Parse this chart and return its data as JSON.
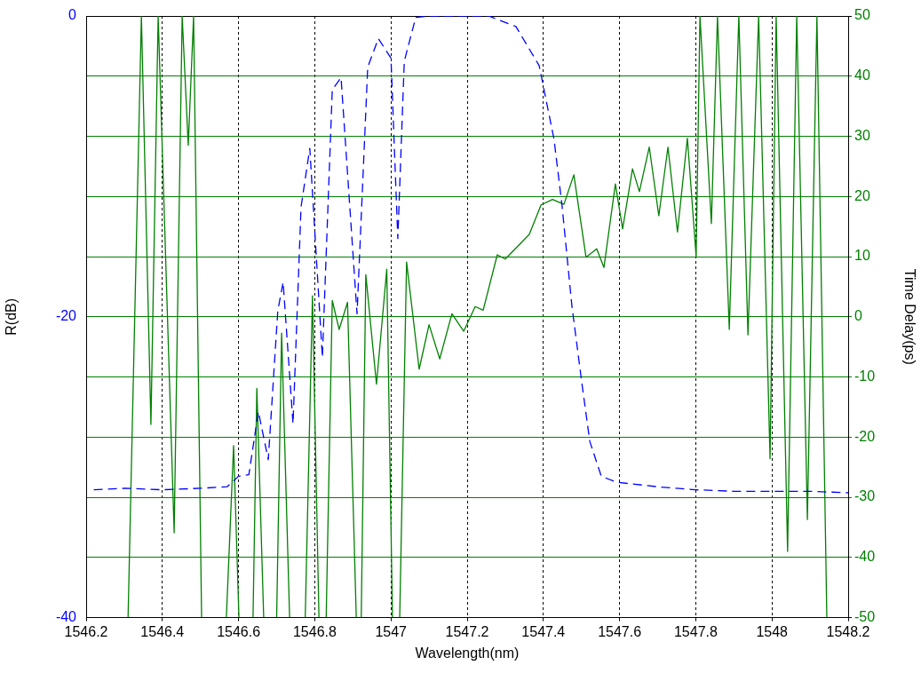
{
  "chart_data": {
    "type": "line",
    "xlabel": "Wavelength(nm)",
    "ylabel": "R(dB)",
    "y2label": "Time Delay(ps)",
    "xlim": [
      1546.2,
      1548.2
    ],
    "xticks": [
      1546.2,
      1546.4,
      1546.6,
      1546.8,
      1547,
      1547.2,
      1547.4,
      1547.6,
      1547.8,
      1548,
      1548.2
    ],
    "ylim": [
      -40,
      0
    ],
    "yticks": [
      -40,
      -20,
      0
    ],
    "y2lim": [
      -50,
      50
    ],
    "y2ticks": [
      -50,
      -40,
      -30,
      -20,
      -10,
      0,
      10,
      20,
      30,
      40,
      50
    ],
    "grid": true,
    "legend": false,
    "marker": "none",
    "series": [
      {
        "color": "#0000ff",
        "line_style": "dashed",
        "x": [
          1546.22,
          1546.3,
          1546.4,
          1546.5,
          1546.57,
          1546.6,
          1546.627,
          1546.652,
          1546.678,
          1546.703,
          1546.717,
          1546.743,
          1546.764,
          1546.787,
          1546.82,
          1546.846,
          1546.869,
          1546.911,
          1546.939,
          1546.967,
          1547.0,
          1547.018,
          1547.035,
          1547.065,
          1547.1,
          1547.256,
          1547.328,
          1547.389,
          1547.428,
          1547.449,
          1547.475,
          1547.501,
          1547.522,
          1547.552,
          1547.592,
          1547.7,
          1547.8,
          1547.9,
          1548.0,
          1548.1,
          1548.2
        ],
        "values": [
          -31.5,
          -31.4,
          -31.5,
          -31.4,
          -31.3,
          -30.6,
          -30.5,
          -26.3,
          -29.5,
          -19.6,
          -17.7,
          -27.1,
          -12.7,
          -8.8,
          -22.7,
          -4.9,
          -4.1,
          -19.8,
          -3.4,
          -1.5,
          -2.8,
          -14.8,
          -3.0,
          -0.1,
          0,
          0,
          -0.7,
          -3.3,
          -8.2,
          -12.6,
          -19.3,
          -24.4,
          -28.3,
          -30.6,
          -31.0,
          -31.3,
          -31.5,
          -31.6,
          -31.6,
          -31.6,
          -31.7
        ]
      },
      {
        "color": "#008000",
        "line_style": "solid",
        "axis": "y2",
        "x": [
          1546.31,
          1546.345,
          1546.37,
          1546.389,
          1546.431,
          1546.452,
          1546.468,
          1546.482,
          1546.503,
          1546.535,
          1546.568,
          1546.587,
          1546.601,
          1546.625,
          1546.638,
          1546.648,
          1546.666,
          1546.69,
          1546.7,
          1546.713,
          1546.734,
          1546.76,
          1546.775,
          1546.794,
          1546.811,
          1546.82,
          1546.83,
          1546.846,
          1546.864,
          1546.886,
          1546.909,
          1546.915,
          1546.922,
          1546.934,
          1546.962,
          1546.989,
          1547.004,
          1547.013,
          1547.023,
          1547.041,
          1547.074,
          1547.1,
          1547.128,
          1547.16,
          1547.191,
          1547.221,
          1547.242,
          1547.279,
          1547.3,
          1547.363,
          1547.394,
          1547.424,
          1547.454,
          1547.48,
          1547.512,
          1547.54,
          1547.559,
          1547.589,
          1547.608,
          1547.634,
          1547.652,
          1547.678,
          1547.703,
          1547.727,
          1547.752,
          1547.778,
          1547.801,
          1547.811,
          1547.841,
          1547.857,
          1547.888,
          1547.913,
          1547.937,
          1547.965,
          1547.995,
          1548.011,
          1548.041,
          1548.065,
          1548.093,
          1548.118,
          1548.144
        ],
        "values": [
          -50,
          50,
          -17.9,
          50,
          -35.9,
          50,
          28.5,
          50,
          -50,
          null,
          -50,
          -21.4,
          -50,
          null,
          -50,
          -11.9,
          -50,
          null,
          -50,
          -2.7,
          -50,
          null,
          -50,
          3.5,
          -50,
          null,
          -50,
          2.7,
          -2.1,
          2.4,
          -50,
          null,
          -50,
          7.0,
          -11.2,
          7.9,
          -50,
          null,
          -50,
          9.1,
          -8.7,
          -1.3,
          -7.0,
          0.5,
          -2.4,
          1.7,
          1.1,
          10.3,
          9.6,
          13.7,
          18.6,
          19.5,
          18.7,
          23.6,
          9.9,
          11.3,
          8.2,
          22.1,
          14.6,
          24.6,
          20.8,
          28.2,
          16.8,
          28.2,
          14.1,
          29.7,
          10.0,
          50,
          15.5,
          50,
          -2.1,
          50,
          -3.0,
          50,
          -23.6,
          50,
          -39.0,
          50,
          -33.7,
          50,
          -50
        ]
      }
    ]
  }
}
